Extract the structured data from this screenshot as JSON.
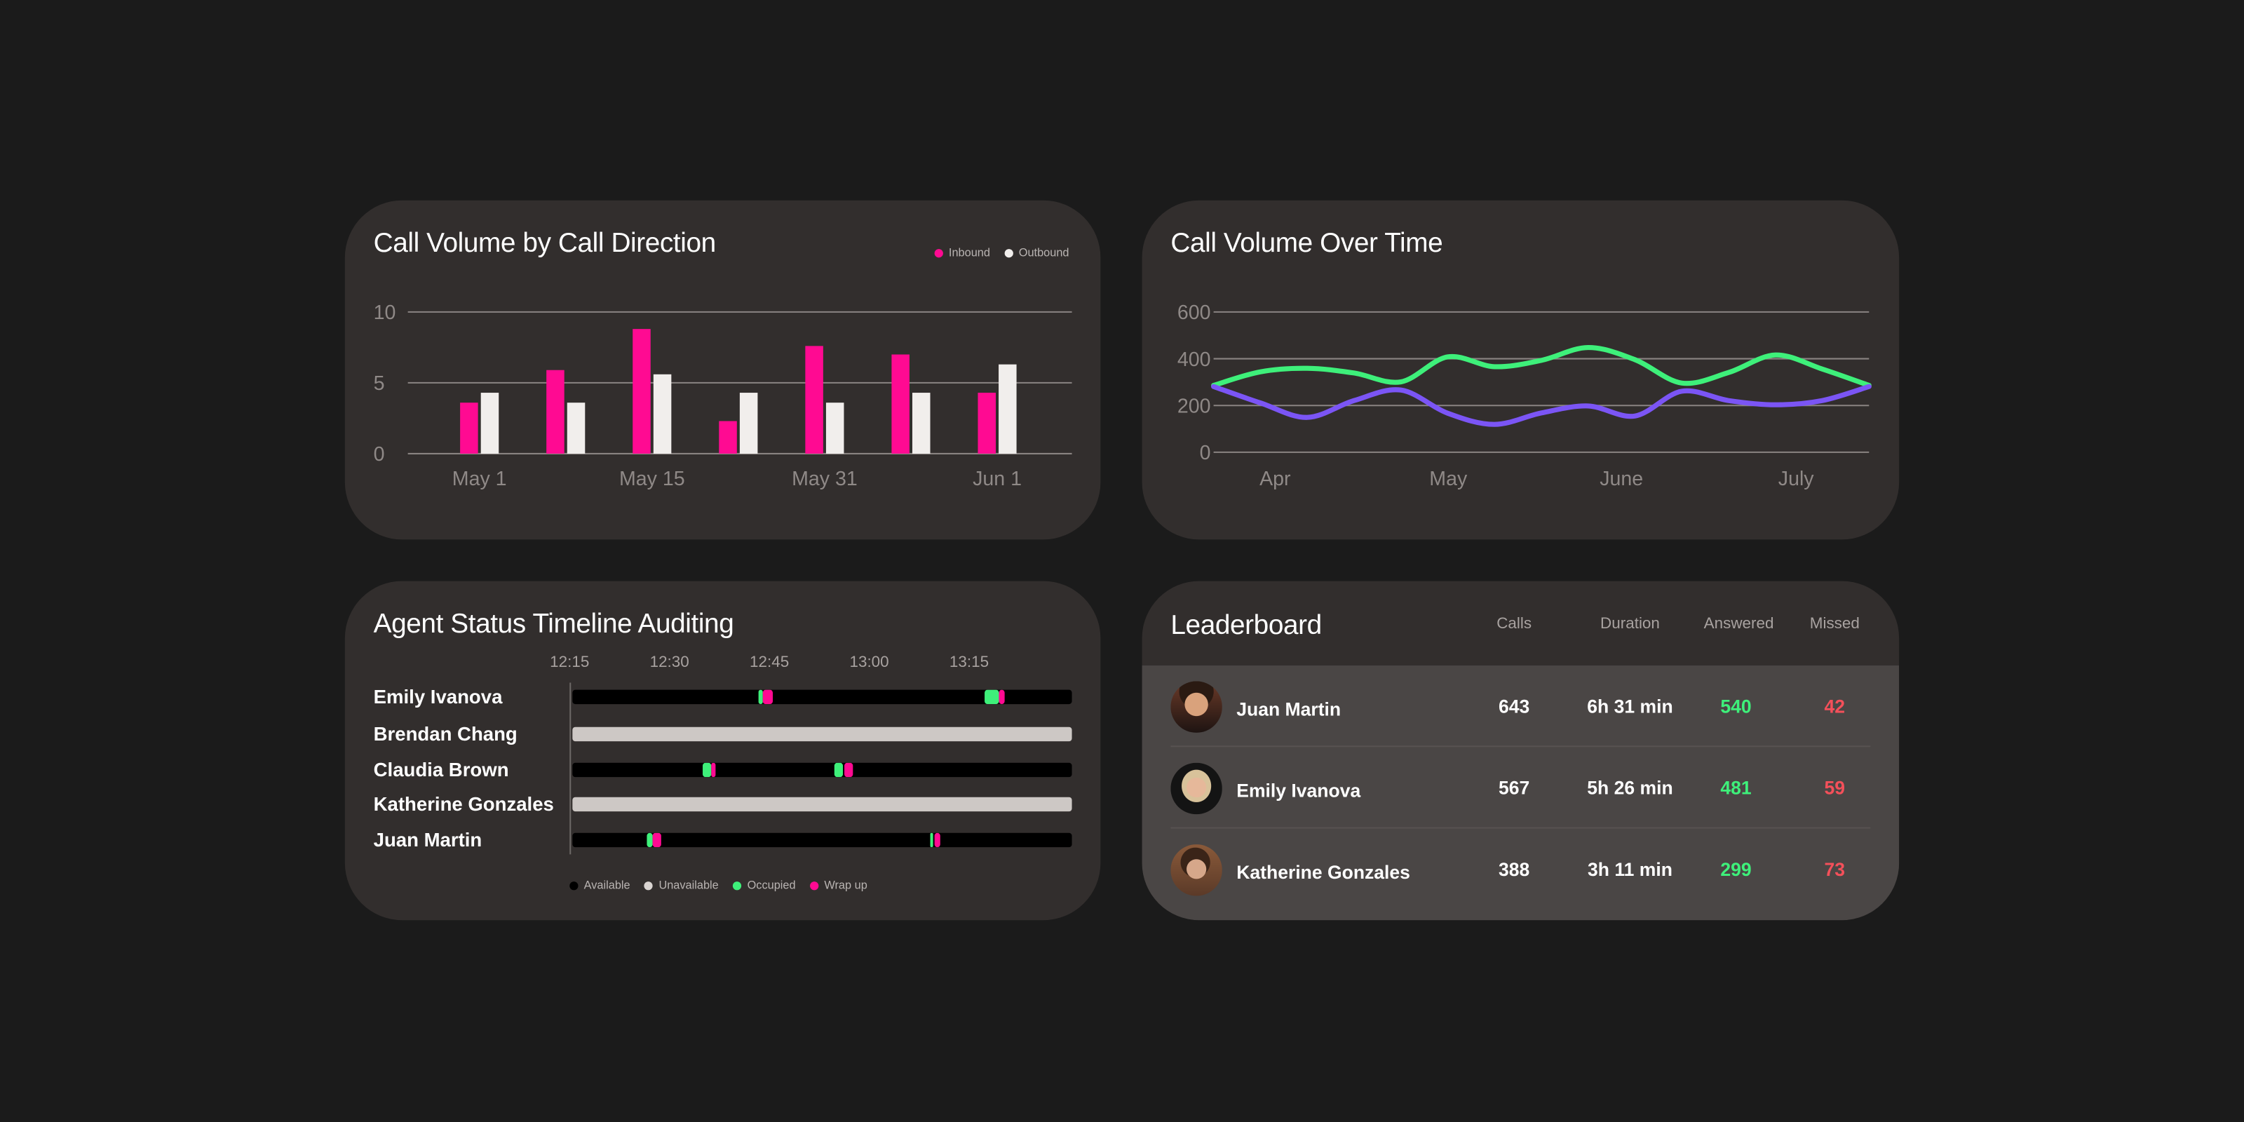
{
  "colors": {
    "background": "#1b1b1b",
    "card": "#322e2d",
    "inbound": "#ff0a92",
    "outbound": "#f1eeec",
    "series_green": "#3ef07a",
    "series_purple": "#7b55f5",
    "available": "#000000",
    "unavailable": "#cdc8c5",
    "occupied": "#3ef07a",
    "wrap_up": "#ff0a92",
    "answered": "#3ef07a",
    "missed": "#f4505a"
  },
  "chart_data": [
    {
      "type": "bar",
      "title": "Call Volume by Call Direction",
      "categories": [
        "May 1",
        "",
        "May 15",
        "",
        "May 31",
        "",
        "Jun 1"
      ],
      "x_tick_labels": [
        "May 1",
        "May 15",
        "May 31",
        "Jun 1"
      ],
      "series": [
        {
          "name": "Inbound",
          "values": [
            3.6,
            5.9,
            8.8,
            2.3,
            7.6,
            7.0,
            4.3
          ]
        },
        {
          "name": "Outbound",
          "values": [
            4.3,
            3.6,
            5.6,
            4.3,
            3.6,
            4.3,
            6.3
          ]
        }
      ],
      "yticks": [
        0,
        5,
        10
      ],
      "ylim": [
        0,
        10
      ],
      "grid": true,
      "legend": "top-right"
    },
    {
      "type": "line",
      "title": "Call Volume Over Time",
      "x_tick_labels": [
        "Apr",
        "May",
        "June",
        "July"
      ],
      "series": [
        {
          "values": [
            286,
            344,
            359,
            339,
            301,
            408,
            366,
            393,
            448,
            396,
            296,
            341,
            416,
            356,
            286
          ]
        },
        {
          "values": [
            281,
            211,
            149,
            221,
            266,
            167,
            119,
            168,
            198,
            155,
            261,
            221,
            203,
            221,
            281
          ]
        }
      ],
      "yticks": [
        0,
        200,
        400,
        600
      ],
      "ylim": [
        0,
        600
      ],
      "grid": true
    }
  ],
  "timeline": {
    "title": "Agent Status Timeline Auditing",
    "range": [
      "12:15",
      "13:30"
    ],
    "ticks": [
      "12:15",
      "12:30",
      "12:45",
      "13:00",
      "13:15"
    ],
    "legend": [
      {
        "key": "available",
        "label": "Available"
      },
      {
        "key": "unavailable",
        "label": "Unavailable"
      },
      {
        "key": "occupied",
        "label": "Occupied"
      },
      {
        "key": "wrap_up",
        "label": "Wrap up"
      }
    ],
    "agents": [
      {
        "name": "Emily Ivanova",
        "base": "available",
        "segments": [
          [
            "occupied",
            "12:43:00",
            "12:43:36"
          ],
          [
            "wrap_up",
            "12:43:36",
            "12:45:00"
          ],
          [
            "occupied",
            "13:16:54",
            "13:19:00"
          ],
          [
            "wrap_up",
            "13:19:00",
            "13:19:54"
          ]
        ]
      },
      {
        "name": "Brendan Chang",
        "base": "unavailable",
        "segments": []
      },
      {
        "name": "Claudia Brown",
        "base": "available",
        "segments": [
          [
            "occupied",
            "12:34:30",
            "12:35:48"
          ],
          [
            "wrap_up",
            "12:35:54",
            "12:36:30"
          ],
          [
            "occupied",
            "12:54:24",
            "12:55:42"
          ],
          [
            "wrap_up",
            "12:55:54",
            "12:57:12"
          ]
        ]
      },
      {
        "name": "Katherine Gonzales",
        "base": "unavailable",
        "segments": []
      },
      {
        "name": "Juan Martin",
        "base": "available",
        "segments": [
          [
            "occupied",
            "12:26:12",
            "12:27:00"
          ],
          [
            "wrap_up",
            "12:27:06",
            "12:28:24"
          ],
          [
            "occupied",
            "13:08:42",
            "13:09:12"
          ],
          [
            "wrap_up",
            "13:09:24",
            "13:10:12"
          ]
        ]
      }
    ]
  },
  "leaderboard": {
    "title": "Leaderboard",
    "columns": [
      "Calls",
      "Duration",
      "Answered",
      "Missed"
    ],
    "rows": [
      {
        "name": "Juan Martin",
        "calls": "643",
        "duration": "6h 31 min",
        "answered": "540",
        "missed": "42"
      },
      {
        "name": "Emily Ivanova",
        "calls": "567",
        "duration": "5h 26 min",
        "answered": "481",
        "missed": "59"
      },
      {
        "name": "Katherine Gonzales",
        "calls": "388",
        "duration": "3h 11 min",
        "answered": "299",
        "missed": "73"
      }
    ]
  }
}
